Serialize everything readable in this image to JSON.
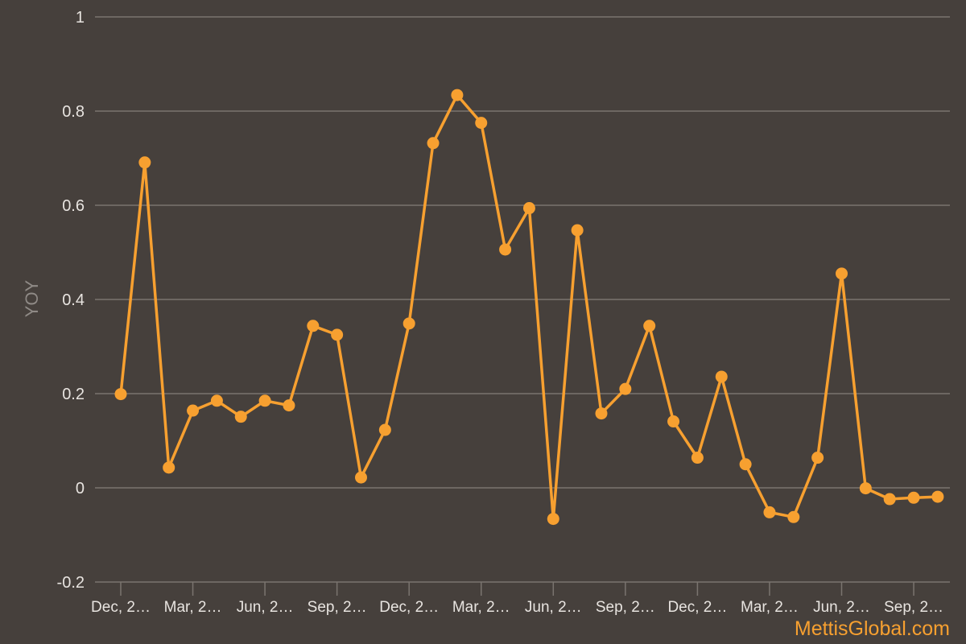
{
  "brand": "MettisGlobal.com",
  "colors": {
    "background": "#46403c",
    "line": "#f7a030",
    "grid": "#7a746f",
    "text": "#e8e4e0"
  },
  "chart_data": {
    "type": "line",
    "title": "",
    "xlabel": "",
    "ylabel": "YOY",
    "ylim": [
      -0.2,
      1
    ],
    "yticks": [
      "1",
      "0.8",
      "0.6",
      "0.4",
      "0.2",
      "0",
      "-0.2"
    ],
    "ytick_values": [
      1,
      0.8,
      0.6,
      0.4,
      0.2,
      0,
      -0.2
    ],
    "xtick_labels": [
      "Dec, 2…",
      "Mar, 2…",
      "Jun, 2…",
      "Sep, 2…",
      "Dec, 2…",
      "Mar, 2…",
      "Jun, 2…",
      "Sep, 2…",
      "Dec, 2…",
      "Mar, 2…",
      "Jun, 2…",
      "Sep, 2…"
    ],
    "grid": true,
    "series": [
      {
        "values": [
          0.199,
          0.691,
          0.043,
          0.164,
          0.185,
          0.151,
          0.185,
          0.175,
          0.344,
          0.325,
          0.022,
          0.123,
          0.349,
          0.732,
          0.834,
          0.775,
          0.506,
          0.594,
          -0.066,
          0.547,
          0.158,
          0.21,
          0.344,
          0.141,
          0.064,
          0.236,
          0.05,
          -0.052,
          -0.062,
          0.064,
          0.455,
          -0.001,
          -0.024,
          -0.021,
          -0.019
        ]
      }
    ]
  }
}
